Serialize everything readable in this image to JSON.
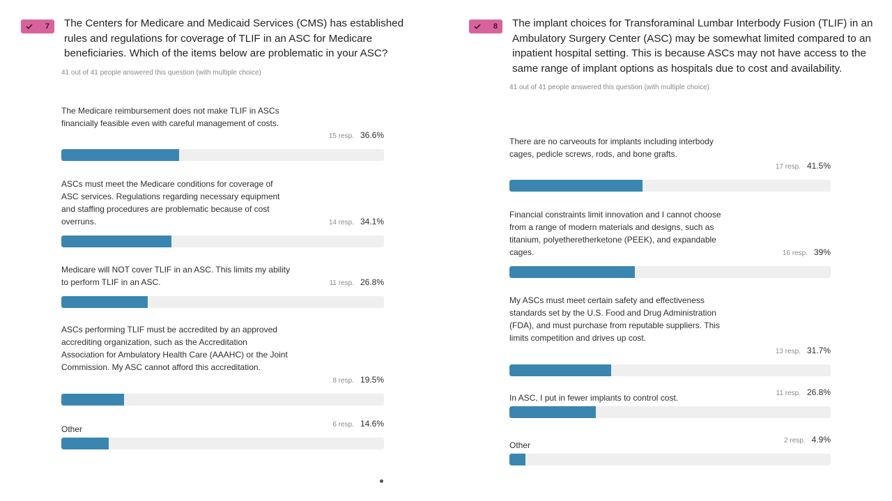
{
  "colors": {
    "badge": "#d8639c",
    "bar_fill": "#3a86b0",
    "bar_track": "#efefef"
  },
  "questions": [
    {
      "number": "7",
      "title": "The Centers for Medicare and Medicaid Services (CMS) has established rules and regulations for coverage of TLIF in an ASC for Medicare beneficiaries. Which of the items below are problematic in your ASC?",
      "subtitle": "41 out of 41 people answered this question (with multiple choice)"
    },
    {
      "number": "8",
      "title": "The implant choices for Transforaminal Lumbar Interbody Fusion (TLIF) in an Ambulatory Surgery Center (ASC) may be somewhat limited compared to an inpatient hospital setting. This is because ASCs may not have access to the same range of implant options as hospitals due to cost and availability.",
      "subtitle": "41 out of 41 people answered this question (with multiple choice)"
    }
  ],
  "chart_data": [
    {
      "type": "bar",
      "orientation": "horizontal",
      "categories": [
        "The Medicare reimbursement does not make TLIF in ASCs financially feasible even with careful management of costs.",
        "ASCs must meet the Medicare conditions for coverage of ASC services. Regulations regarding necessary equipment and staffing procedures are problematic because of cost overruns.",
        "Medicare will NOT cover TLIF in an ASC. This limits my ability to perform TLIF in an ASC.",
        "ASCs performing TLIF must be accredited by an approved accrediting organization, such as the Accreditation Association for Ambulatory Health Care (AAAHC) or the Joint Commission. My ASC cannot afford this accreditation.",
        "Other"
      ],
      "responses": [
        "15 resp.",
        "14 resp.",
        "11 resp.",
        "8 resp.",
        "6 resp."
      ],
      "percent_labels": [
        "36.6%",
        "34.1%",
        "26.8%",
        "19.5%",
        "14.6%"
      ],
      "values": [
        36.6,
        34.1,
        26.8,
        19.5,
        14.6
      ],
      "xlim": [
        0,
        100
      ]
    },
    {
      "type": "bar",
      "orientation": "horizontal",
      "categories": [
        "There are no carveouts for implants including interbody cages, pedicle screws, rods, and bone grafts.",
        "Financial constraints limit innovation and I cannot choose from a range of modern materials and designs, such as titanium, polyetheretherketone (PEEK), and expandable cages.",
        "My ASCs must meet certain safety and effectiveness standards set by the U.S. Food and Drug Administration (FDA), and must purchase from reputable suppliers. This limits competition and drives up cost.",
        "In ASC, I put in fewer implants to control cost.",
        "Other"
      ],
      "responses": [
        "17 resp.",
        "16 resp.",
        "13 resp.",
        "11 resp.",
        "2 resp."
      ],
      "percent_labels": [
        "41.5%",
        "39%",
        "31.7%",
        "26.8%",
        "4.9%"
      ],
      "values": [
        41.5,
        39,
        31.7,
        26.8,
        4.9
      ],
      "xlim": [
        0,
        100
      ]
    }
  ]
}
